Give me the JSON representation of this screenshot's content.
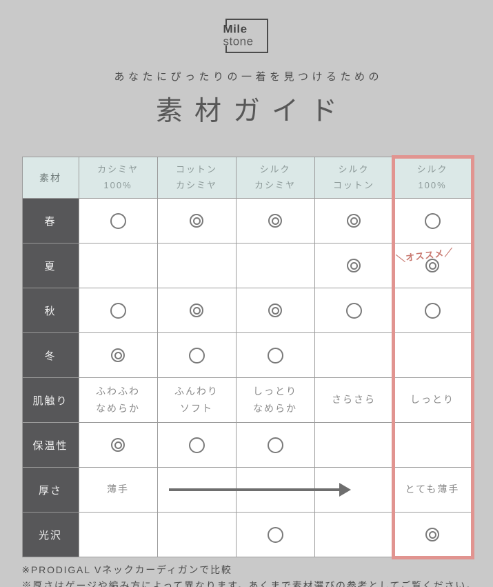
{
  "logo": {
    "line1": "Mile",
    "line2": "stone"
  },
  "header": {
    "subtitle": "あなたにぴったりの一着を見つけるための",
    "title": "素材ガイド"
  },
  "chart_data": {
    "type": "table",
    "title": "素材ガイド",
    "subtitle": "あなたにぴったりの一着を見つけるための",
    "corner_label": "素材",
    "columns": [
      "カシミヤ\n100%",
      "コットン\nカシミヤ",
      "シルク\nカシミヤ",
      "シルク\nコットン",
      "シルク\n100%"
    ],
    "highlight_column_index": 4,
    "symbol_circle": "○",
    "symbol_double_circle": "◎",
    "rows": [
      {
        "label": "春",
        "cells": [
          "○",
          "◎",
          "◎",
          "◎",
          "○"
        ]
      },
      {
        "label": "夏",
        "cells": [
          "",
          "",
          "",
          "◎",
          "◎"
        ]
      },
      {
        "label": "秋",
        "cells": [
          "○",
          "◎",
          "◎",
          "○",
          "○"
        ]
      },
      {
        "label": "冬",
        "cells": [
          "◎",
          "○",
          "○",
          "",
          ""
        ]
      },
      {
        "label": "肌触り",
        "cells": [
          "ふわふわ\nなめらか",
          "ふんわり\nソフト",
          "しっとり\nなめらか",
          "さらさら",
          "しっとり"
        ]
      },
      {
        "label": "保温性",
        "cells": [
          "◎",
          "○",
          "○",
          "",
          ""
        ]
      },
      {
        "label": "厚さ",
        "cells": [
          "薄手",
          "",
          "",
          "",
          "とても薄手"
        ]
      },
      {
        "label": "光沢",
        "cells": [
          "",
          "",
          "○",
          "",
          "◎"
        ]
      }
    ],
    "annotation": {
      "row_index": 1,
      "col_index": 4,
      "text": "＼オススメ／"
    },
    "arrow": {
      "row_index": 6,
      "from_col_index": 1,
      "to_col_index": 3,
      "direction": "right"
    }
  },
  "notes": [
    "※PRODIGAL Vネックカーディガンで比較",
    "※厚さはゲージや編み方によって異なります。あくまで素材選びの参考としてご覧ください。"
  ],
  "colors": {
    "background": "#c9c9c9",
    "header_cell_bg": "#dbe8e7",
    "row_label_bg": "#575759",
    "grid_line": "#9b9b9b",
    "highlight_frame": "#e19490",
    "annotation_text": "#c8786f",
    "symbol": "#7a7a7a",
    "arrow": "#6e6e6e"
  }
}
